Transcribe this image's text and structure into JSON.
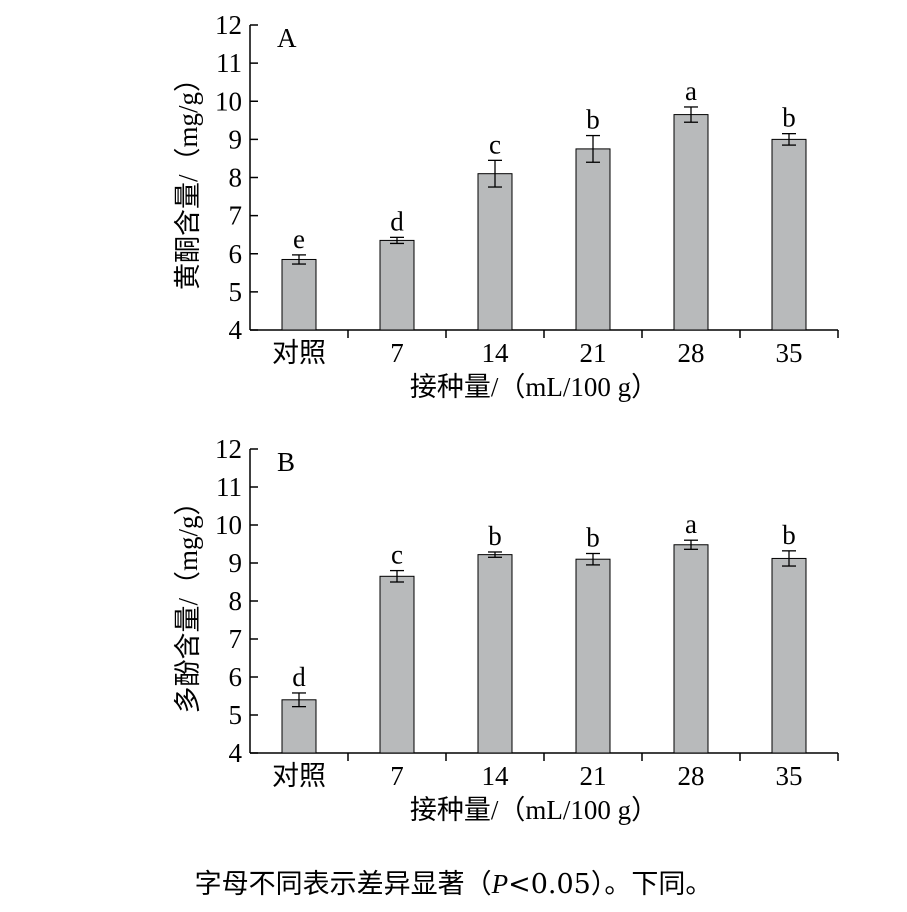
{
  "chart_data": [
    {
      "type": "bar",
      "panel_label": "A",
      "categories": [
        "对照",
        "7",
        "14",
        "21",
        "28",
        "35"
      ],
      "values": [
        5.85,
        6.35,
        8.1,
        8.75,
        9.65,
        9.0
      ],
      "errors": [
        0.12,
        0.08,
        0.35,
        0.35,
        0.2,
        0.15
      ],
      "significance": [
        "e",
        "d",
        "c",
        "b",
        "a",
        "b"
      ],
      "xlabel": "接种量/（mL/100 g）",
      "ylabel": "黄酮含量/（mg/g）",
      "ylim": [
        4,
        12
      ],
      "yticks": [
        4,
        5,
        6,
        7,
        8,
        9,
        10,
        11,
        12
      ],
      "bar_color": "#b8babb",
      "grid": false
    },
    {
      "type": "bar",
      "panel_label": "B",
      "categories": [
        "对照",
        "7",
        "14",
        "21",
        "28",
        "35"
      ],
      "values": [
        5.4,
        8.65,
        9.22,
        9.1,
        9.48,
        9.12
      ],
      "errors": [
        0.18,
        0.15,
        0.07,
        0.15,
        0.12,
        0.2
      ],
      "significance": [
        "d",
        "c",
        "b",
        "b",
        "a",
        "b"
      ],
      "xlabel": "接种量/（mL/100 g）",
      "ylabel": "多酚含量/（mg/g）",
      "ylim": [
        4,
        12
      ],
      "yticks": [
        4,
        5,
        6,
        7,
        8,
        9,
        10,
        11,
        12
      ],
      "bar_color": "#b8babb",
      "grid": false
    }
  ],
  "caption": {
    "text_before": "字母不同表示差异显著（",
    "italic": "P",
    "text_after": "<0.05）。下同。"
  }
}
